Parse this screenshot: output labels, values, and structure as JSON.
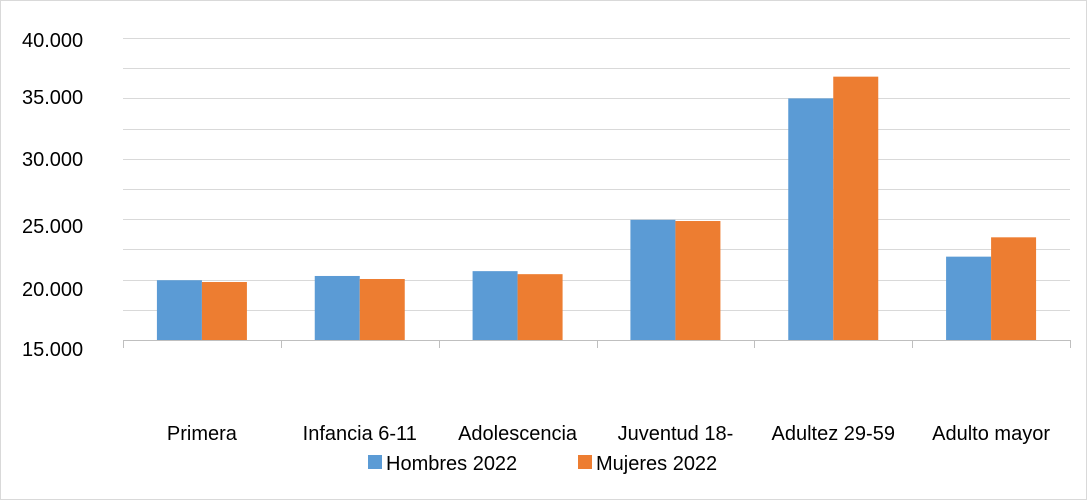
{
  "chart_data": {
    "type": "bar",
    "categories": [
      "Primera",
      "Infancia 6-11",
      "Adolescencia",
      "Juventud 18-",
      "Adultez 29-59",
      "Adulto mayor"
    ],
    "series": [
      {
        "name": "Hombres 2022",
        "color": "#5b9bd5",
        "values": [
          19950,
          20300,
          20700,
          24950,
          35000,
          21900
        ]
      },
      {
        "name": "Mujeres 2022",
        "color": "#ed7d31",
        "values": [
          19800,
          20050,
          20450,
          24850,
          36800,
          23500
        ]
      }
    ],
    "ylim": [
      15000,
      40000
    ],
    "y_tick_labels": [
      {
        "value": 15000,
        "label": "15.000"
      },
      {
        "value": 20000,
        "label": "20.000"
      },
      {
        "value": 25000,
        "label": "25.000"
      },
      {
        "value": 30000,
        "label": "30.000"
      },
      {
        "value": 35000,
        "label": "35.000"
      },
      {
        "value": 40000,
        "label": "40.000"
      }
    ],
    "grid": true,
    "legend_position": "bottom",
    "title": "",
    "xlabel": "",
    "ylabel": ""
  }
}
